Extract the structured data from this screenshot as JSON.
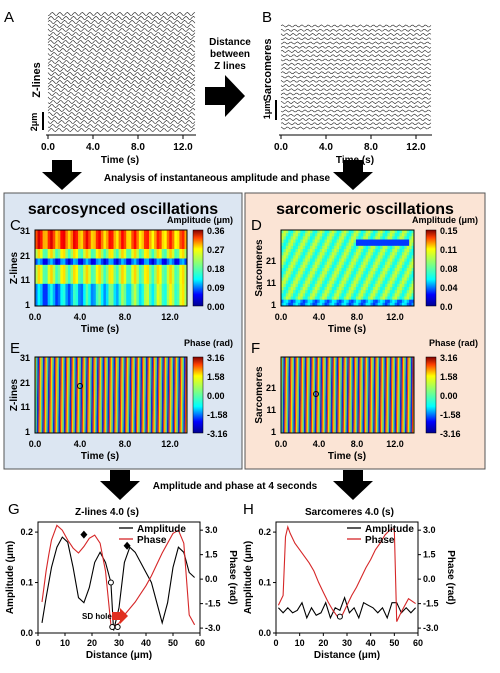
{
  "panels": {
    "A": "A",
    "B": "B",
    "C": "C",
    "D": "D",
    "E": "E",
    "F": "F",
    "G": "G",
    "H": "H"
  },
  "top": {
    "a_ylabel": "Z-lines",
    "a_scale": "2μm",
    "b_ylabel": "Sarcomeres",
    "b_scale": "1μm",
    "xlabel": "Time (s)",
    "xticks": [
      "0.0",
      "4.0",
      "8.0",
      "12.0"
    ],
    "arrow_text": [
      "Distance",
      "between",
      "Z lines"
    ]
  },
  "analysis_text": "Analysis of instantaneous amplitude and phase",
  "left_box": {
    "title": "sarcosynced oscillations",
    "c_cbar_title": "Amplitude (μm)",
    "c_cbar_ticks": [
      "0.36",
      "0.27",
      "0.18",
      "0.09",
      "0.00"
    ],
    "c_ylabel": "Z-lines",
    "c_yticks": [
      "31",
      "21",
      "11",
      "1"
    ],
    "e_cbar_title": "Phase (rad)",
    "e_cbar_ticks": [
      "3.16",
      "1.58",
      "0.00",
      "-1.58",
      "-3.16"
    ],
    "e_ylabel": "Z-lines",
    "e_yticks": [
      "31",
      "21",
      "11",
      "1"
    ],
    "xlabel": "Time (s)",
    "xticks": [
      "0.0",
      "4.0",
      "8.0",
      "12.0"
    ]
  },
  "right_box": {
    "title": "sarcomeric oscillations",
    "d_cbar_title": "Amplitude (μm)",
    "d_cbar_ticks": [
      "0.15",
      "0.11",
      "0.08",
      "0.04",
      "0.0"
    ],
    "d_ylabel": "Sarcomeres",
    "d_yticks": [
      "21",
      "11",
      "1"
    ],
    "f_cbar_title": "Phase (rad)",
    "f_cbar_ticks": [
      "3.16",
      "1.58",
      "0.00",
      "-1.58",
      "-3.16"
    ],
    "f_ylabel": "Sarcomeres",
    "f_yticks": [
      "21",
      "11",
      "1"
    ],
    "xlabel": "Time (s)",
    "xticks": [
      "0.0",
      "4.0",
      "8.0",
      "12.0"
    ]
  },
  "bottom_text": "Amplitude and phase at 4 seconds",
  "colors": {
    "left_box_bg": "#dce6f2",
    "right_box_bg": "#fbe4d5",
    "amplitude": "#000000",
    "phase": "#d62728"
  },
  "chart_data": [
    {
      "type": "line",
      "title": "Z-lines 4.0 (s)",
      "xlabel": "Distance (μm)",
      "ylabel": "Amplitude (μm)",
      "y2label": "Phase (rad)",
      "xlim": [
        0,
        60
      ],
      "ylim": [
        0,
        0.22
      ],
      "y2lim": [
        -3.3,
        3.5
      ],
      "xticks": [
        "0",
        "10",
        "20",
        "30",
        "40",
        "50",
        "60"
      ],
      "yticks": [
        "0.0",
        "0.1",
        "0.2"
      ],
      "y2ticks": [
        "3.0",
        "1.5",
        "0.0",
        "-1.5",
        "-3.0"
      ],
      "legend": [
        "Amplitude",
        "Phase"
      ],
      "annotation": "SD hole",
      "series": [
        {
          "name": "Amplitude",
          "axis": "left",
          "x": [
            1.5,
            3,
            5,
            7,
            9,
            11,
            13,
            15,
            17,
            19,
            21,
            23,
            25,
            27,
            28,
            30,
            32,
            34,
            36,
            38,
            40,
            42,
            44,
            46,
            48,
            50,
            52,
            54,
            56,
            58
          ],
          "y": [
            0.02,
            0.07,
            0.13,
            0.17,
            0.19,
            0.18,
            0.13,
            0.07,
            0.06,
            0.09,
            0.14,
            0.16,
            0.14,
            0.1,
            0.005,
            0.05,
            0.14,
            0.17,
            0.16,
            0.14,
            0.12,
            0.1,
            0.06,
            0.02,
            0.06,
            0.13,
            0.17,
            0.16,
            0.12,
            0.11
          ]
        },
        {
          "name": "Phase",
          "axis": "right",
          "x": [
            1.5,
            3,
            4,
            5,
            7,
            9,
            11,
            13,
            15,
            17,
            19,
            21,
            23,
            25,
            27,
            28,
            30,
            32,
            34,
            36,
            38,
            40,
            42,
            44,
            46,
            48,
            50,
            52,
            54,
            56,
            58
          ],
          "y": [
            -1.4,
            0.5,
            1.5,
            2.4,
            3.3,
            3.0,
            2.4,
            1.9,
            1.6,
            2.0,
            2.5,
            2.7,
            2.2,
            0.5,
            -2.8,
            -2.9,
            -2.7,
            -2.2,
            -1.8,
            -1.4,
            -0.9,
            -0.4,
            0.2,
            0.9,
            1.6,
            2.2,
            2.8,
            3.0,
            2.2,
            -2.2,
            -2.8
          ]
        }
      ],
      "markers": {
        "filled": [
          [
            17,
            0.195
          ],
          [
            33,
            0.173
          ]
        ],
        "open": [
          [
            27,
            0.1
          ],
          [
            27.5,
            0.012
          ],
          [
            29.5,
            0.012
          ]
        ]
      }
    },
    {
      "type": "line",
      "title": "Sarcomeres 4.0 (s)",
      "xlabel": "Distance (μm)",
      "ylabel": "Amplitude (μm)",
      "y2label": "Phase (rad)",
      "xlim": [
        0,
        60
      ],
      "ylim": [
        0,
        0.22
      ],
      "y2lim": [
        -3.3,
        3.5
      ],
      "xticks": [
        "0",
        "10",
        "20",
        "30",
        "40",
        "50",
        "60"
      ],
      "yticks": [
        "0.0",
        "0.1",
        "0.2"
      ],
      "y2ticks": [
        "3.0",
        "1.5",
        "0.0",
        "-1.5",
        "-3.0"
      ],
      "legend": [
        "Amplitude",
        "Phase"
      ],
      "series": [
        {
          "name": "Amplitude",
          "axis": "left",
          "x": [
            1,
            3,
            5,
            7,
            9,
            11,
            13,
            15,
            17,
            19,
            21,
            23,
            25,
            27,
            29,
            31,
            33,
            35,
            37,
            39,
            41,
            43,
            45,
            47,
            49,
            51,
            53,
            55,
            57,
            59
          ],
          "y": [
            0.05,
            0.04,
            0.05,
            0.04,
            0.045,
            0.06,
            0.03,
            0.05,
            0.035,
            0.04,
            0.06,
            0.03,
            0.05,
            0.045,
            0.07,
            0.04,
            0.05,
            0.03,
            0.06,
            0.055,
            0.05,
            0.04,
            0.05,
            0.03,
            0.06,
            0.06,
            0.04,
            0.05,
            0.04,
            0.05
          ]
        },
        {
          "name": "Phase",
          "axis": "right",
          "x": [
            1,
            3,
            4,
            5,
            6,
            8,
            10,
            12,
            14,
            16,
            18,
            20,
            22,
            24,
            26,
            28,
            30,
            32,
            34,
            36,
            38,
            40,
            42,
            44,
            46,
            48,
            50,
            51,
            53,
            56,
            59
          ],
          "y": [
            -1.6,
            -1.0,
            2.6,
            3.2,
            2.8,
            2.2,
            1.8,
            1.4,
            1.0,
            0.5,
            -0.2,
            -0.8,
            -1.4,
            -1.9,
            -2.3,
            -2.2,
            -1.6,
            -1.0,
            -0.5,
            0.1,
            0.7,
            1.2,
            1.8,
            2.2,
            2.7,
            3.0,
            3.1,
            -2.6,
            -2.0,
            -1.2,
            -1.5
          ]
        }
      ],
      "markers": {
        "open": [
          [
            27,
            -2.3
          ]
        ]
      }
    }
  ]
}
